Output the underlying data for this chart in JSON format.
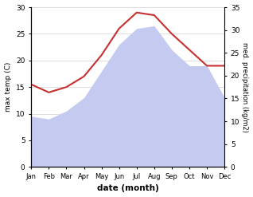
{
  "months": [
    "Jan",
    "Feb",
    "Mar",
    "Apr",
    "May",
    "Jun",
    "Jul",
    "Aug",
    "Sep",
    "Oct",
    "Nov",
    "Dec"
  ],
  "max_temp": [
    15.5,
    14.0,
    15.0,
    17.0,
    21.0,
    26.0,
    29.0,
    28.5,
    25.0,
    22.0,
    19.0,
    19.0
  ],
  "precipitation": [
    9.5,
    9.0,
    10.5,
    13.0,
    18.0,
    23.0,
    26.0,
    26.5,
    22.0,
    19.0,
    19.0,
    13.0
  ],
  "temp_color": "#c83030",
  "precip_fill_color": "#c5caf0",
  "temp_ylim": [
    0,
    30
  ],
  "precip_ylim": [
    0,
    35
  ],
  "temp_ylabel": "max temp (C)",
  "precip_ylabel": "med. precipitation (kg/m2)",
  "xlabel": "date (month)",
  "temp_yticks": [
    0,
    5,
    10,
    15,
    20,
    25,
    30
  ],
  "precip_yticks": [
    0,
    5,
    10,
    15,
    20,
    25,
    30,
    35
  ],
  "background_color": "#ffffff"
}
